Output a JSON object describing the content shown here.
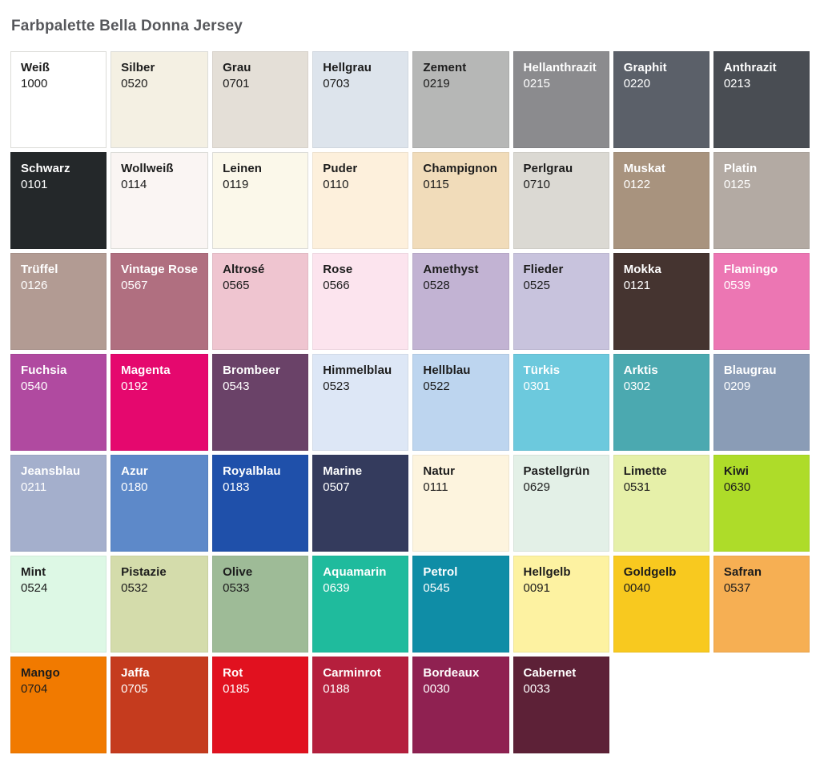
{
  "page": {
    "title": "Farbpalette Bella Donna Jersey"
  },
  "palette": {
    "columns": 8,
    "dark_text_color": "#1c1c1c",
    "light_text_color": "#ffffff",
    "swatches": [
      {
        "name": "Weiß",
        "code": "1000",
        "color": "#ffffff",
        "text": "#1c1c1c",
        "border": true
      },
      {
        "name": "Silber",
        "code": "0520",
        "color": "#f4f0e3",
        "text": "#1c1c1c",
        "border": true
      },
      {
        "name": "Grau",
        "code": "0701",
        "color": "#e4dfd7",
        "text": "#1c1c1c",
        "border": false
      },
      {
        "name": "Hellgrau",
        "code": "0703",
        "color": "#dde4ec",
        "text": "#1c1c1c",
        "border": false
      },
      {
        "name": "Zement",
        "code": "0219",
        "color": "#b6b7b6",
        "text": "#1c1c1c",
        "border": false
      },
      {
        "name": "Hellanthrazit",
        "code": "0215",
        "color": "#8b8b8e",
        "text": "#ffffff",
        "border": false
      },
      {
        "name": "Graphit",
        "code": "0220",
        "color": "#5b6069",
        "text": "#ffffff",
        "border": false
      },
      {
        "name": "Anthrazit",
        "code": "0213",
        "color": "#494d53",
        "text": "#ffffff",
        "border": false
      },
      {
        "name": "Schwarz",
        "code": "0101",
        "color": "#24282a",
        "text": "#ffffff",
        "border": false
      },
      {
        "name": "Wollweiß",
        "code": "0114",
        "color": "#faf5f3",
        "text": "#1c1c1c",
        "border": true
      },
      {
        "name": "Leinen",
        "code": "0119",
        "color": "#fbf8ea",
        "text": "#1c1c1c",
        "border": true
      },
      {
        "name": "Puder",
        "code": "0110",
        "color": "#fdf0dc",
        "text": "#1c1c1c",
        "border": false
      },
      {
        "name": "Champignon",
        "code": "0115",
        "color": "#f1dcba",
        "text": "#1c1c1c",
        "border": false
      },
      {
        "name": "Perlgrau",
        "code": "0710",
        "color": "#dbd9d3",
        "text": "#1c1c1c",
        "border": false
      },
      {
        "name": "Muskat",
        "code": "0122",
        "color": "#a8937e",
        "text": "#ffffff",
        "border": false
      },
      {
        "name": "Platin",
        "code": "0125",
        "color": "#b3aaa3",
        "text": "#ffffff",
        "border": false
      },
      {
        "name": "Trüffel",
        "code": "0126",
        "color": "#b29b93",
        "text": "#ffffff",
        "border": false
      },
      {
        "name": "Vintage Rose",
        "code": "0567",
        "color": "#b06f80",
        "text": "#ffffff",
        "border": false
      },
      {
        "name": "Altrosé",
        "code": "0565",
        "color": "#efc5d0",
        "text": "#1c1c1c",
        "border": false
      },
      {
        "name": "Rose",
        "code": "0566",
        "color": "#fce4ee",
        "text": "#1c1c1c",
        "border": false
      },
      {
        "name": "Amethyst",
        "code": "0528",
        "color": "#c2b3d3",
        "text": "#1c1c1c",
        "border": false
      },
      {
        "name": "Flieder",
        "code": "0525",
        "color": "#c8c3dd",
        "text": "#1c1c1c",
        "border": false
      },
      {
        "name": "Mokka",
        "code": "0121",
        "color": "#453430",
        "text": "#ffffff",
        "border": false
      },
      {
        "name": "Flamingo",
        "code": "0539",
        "color": "#ec76b3",
        "text": "#ffffff",
        "border": false
      },
      {
        "name": "Fuchsia",
        "code": "0540",
        "color": "#b04aa0",
        "text": "#ffffff",
        "border": false
      },
      {
        "name": "Magenta",
        "code": "0192",
        "color": "#e5086e",
        "text": "#ffffff",
        "border": false
      },
      {
        "name": "Brombeer",
        "code": "0543",
        "color": "#6a4268",
        "text": "#ffffff",
        "border": false
      },
      {
        "name": "Himmelblau",
        "code": "0523",
        "color": "#dde7f6",
        "text": "#1c1c1c",
        "border": false
      },
      {
        "name": "Hellblau",
        "code": "0522",
        "color": "#bdd5ef",
        "text": "#1c1c1c",
        "border": false
      },
      {
        "name": "Türkis",
        "code": "0301",
        "color": "#6cc9dd",
        "text": "#ffffff",
        "border": false
      },
      {
        "name": "Arktis",
        "code": "0302",
        "color": "#4ba9b0",
        "text": "#ffffff",
        "border": false
      },
      {
        "name": "Blaugrau",
        "code": "0209",
        "color": "#8a9cb6",
        "text": "#ffffff",
        "border": false
      },
      {
        "name": "Jeansblau",
        "code": "0211",
        "color": "#a4afcc",
        "text": "#ffffff",
        "border": false
      },
      {
        "name": "Azur",
        "code": "0180",
        "color": "#5d89c9",
        "text": "#ffffff",
        "border": false
      },
      {
        "name": "Royalblau",
        "code": "0183",
        "color": "#1f50aa",
        "text": "#ffffff",
        "border": false
      },
      {
        "name": "Marine",
        "code": "0507",
        "color": "#343b5d",
        "text": "#ffffff",
        "border": false
      },
      {
        "name": "Natur",
        "code": "0111",
        "color": "#fdf4de",
        "text": "#1c1c1c",
        "border": false
      },
      {
        "name": "Pastellgrün",
        "code": "0629",
        "color": "#e3f0e7",
        "text": "#1c1c1c",
        "border": false
      },
      {
        "name": "Limette",
        "code": "0531",
        "color": "#e6f0a9",
        "text": "#1c1c1c",
        "border": false
      },
      {
        "name": "Kiwi",
        "code": "0630",
        "color": "#aedc29",
        "text": "#1c1c1c",
        "border": false
      },
      {
        "name": "Mint",
        "code": "0524",
        "color": "#ddf8e5",
        "text": "#1c1c1c",
        "border": false
      },
      {
        "name": "Pistazie",
        "code": "0532",
        "color": "#d4dcab",
        "text": "#1c1c1c",
        "border": false
      },
      {
        "name": "Olive",
        "code": "0533",
        "color": "#9ebb97",
        "text": "#1c1c1c",
        "border": false
      },
      {
        "name": "Aquamarin",
        "code": "0639",
        "color": "#1fbb9d",
        "text": "#ffffff",
        "border": false
      },
      {
        "name": "Petrol",
        "code": "0545",
        "color": "#0f8da6",
        "text": "#ffffff",
        "border": false
      },
      {
        "name": "Hellgelb",
        "code": "0091",
        "color": "#fdf2a1",
        "text": "#1c1c1c",
        "border": false
      },
      {
        "name": "Goldgelb",
        "code": "0040",
        "color": "#f8c91f",
        "text": "#1c1c1c",
        "border": false
      },
      {
        "name": "Safran",
        "code": "0537",
        "color": "#f6af53",
        "text": "#1c1c1c",
        "border": false
      },
      {
        "name": "Mango",
        "code": "0704",
        "color": "#f17a00",
        "text": "#1c1c1c",
        "border": false
      },
      {
        "name": "Jaffa",
        "code": "0705",
        "color": "#c53b1e",
        "text": "#ffffff",
        "border": false
      },
      {
        "name": "Rot",
        "code": "0185",
        "color": "#e1111f",
        "text": "#ffffff",
        "border": false
      },
      {
        "name": "Carminrot",
        "code": "0188",
        "color": "#b51f3d",
        "text": "#ffffff",
        "border": false
      },
      {
        "name": "Bordeaux",
        "code": "0030",
        "color": "#8f2151",
        "text": "#ffffff",
        "border": false
      },
      {
        "name": "Cabernet",
        "code": "0033",
        "color": "#5d2137",
        "text": "#ffffff",
        "border": false
      }
    ]
  }
}
